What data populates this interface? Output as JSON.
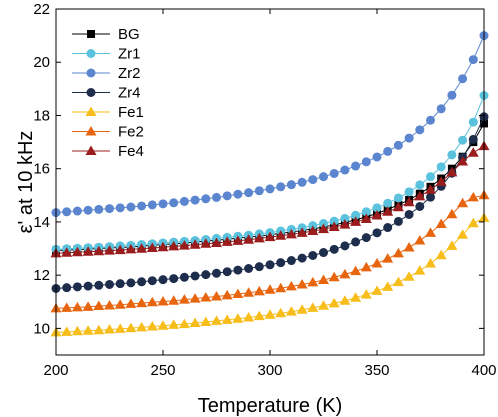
{
  "chart_data": {
    "type": "line",
    "xlabel": "Temperature (K)",
    "ylabel": "ε' at 10 kHz",
    "xlim": [
      200,
      400
    ],
    "ylim": [
      9,
      22
    ],
    "xticks": [
      200,
      250,
      300,
      350,
      400
    ],
    "yticks": [
      10,
      12,
      14,
      16,
      18,
      20,
      22
    ],
    "grid": false,
    "legend": "top-left",
    "x": [
      200,
      205,
      210,
      215,
      220,
      225,
      230,
      235,
      240,
      245,
      250,
      255,
      260,
      265,
      270,
      275,
      280,
      285,
      290,
      295,
      300,
      305,
      310,
      315,
      320,
      325,
      330,
      335,
      340,
      345,
      350,
      355,
      360,
      365,
      370,
      375,
      380,
      385,
      390,
      395,
      400
    ],
    "series": [
      {
        "name": "BG",
        "marker": "square",
        "color": "#000000",
        "values": [
          12.92,
          12.94,
          12.96,
          12.98,
          13.0,
          13.02,
          13.04,
          13.06,
          13.09,
          13.12,
          13.15,
          13.18,
          13.21,
          13.24,
          13.28,
          13.31,
          13.35,
          13.39,
          13.43,
          13.47,
          13.52,
          13.57,
          13.62,
          13.68,
          13.74,
          13.81,
          13.89,
          13.98,
          14.08,
          14.19,
          14.32,
          14.47,
          14.64,
          14.83,
          15.06,
          15.32,
          15.63,
          16.0,
          16.45,
          17.0,
          17.7
        ]
      },
      {
        "name": "Zr1",
        "marker": "circle",
        "color": "#5bc2dd",
        "values": [
          12.97,
          12.99,
          13.01,
          13.03,
          13.05,
          13.07,
          13.1,
          13.12,
          13.15,
          13.18,
          13.21,
          13.24,
          13.27,
          13.3,
          13.34,
          13.38,
          13.42,
          13.46,
          13.5,
          13.55,
          13.6,
          13.66,
          13.72,
          13.78,
          13.86,
          13.94,
          14.03,
          14.13,
          14.25,
          14.38,
          14.53,
          14.7,
          14.9,
          15.13,
          15.39,
          15.7,
          16.07,
          16.52,
          17.07,
          17.75,
          18.75
        ]
      },
      {
        "name": "Zr2",
        "marker": "circle",
        "color": "#5b86cf",
        "values": [
          14.35,
          14.38,
          14.41,
          14.44,
          14.47,
          14.5,
          14.53,
          14.56,
          14.6,
          14.64,
          14.68,
          14.72,
          14.77,
          14.82,
          14.87,
          14.92,
          14.98,
          15.04,
          15.1,
          15.17,
          15.24,
          15.32,
          15.4,
          15.49,
          15.59,
          15.7,
          15.82,
          15.95,
          16.1,
          16.26,
          16.44,
          16.65,
          16.88,
          17.15,
          17.46,
          17.82,
          18.25,
          18.76,
          19.38,
          20.1,
          21.0
        ]
      },
      {
        "name": "Zr4",
        "marker": "circle",
        "color": "#1f2d4d",
        "values": [
          11.5,
          11.53,
          11.56,
          11.59,
          11.62,
          11.65,
          11.68,
          11.71,
          11.75,
          11.79,
          11.83,
          11.87,
          11.92,
          11.97,
          12.02,
          12.07,
          12.13,
          12.19,
          12.25,
          12.32,
          12.39,
          12.47,
          12.55,
          12.64,
          12.74,
          12.85,
          12.97,
          13.1,
          13.25,
          13.41,
          13.59,
          13.79,
          14.02,
          14.28,
          14.58,
          14.93,
          15.34,
          15.83,
          16.42,
          17.1,
          17.95
        ]
      },
      {
        "name": "Fe1",
        "marker": "triangle",
        "color": "#f7bd1a",
        "values": [
          9.85,
          9.87,
          9.89,
          9.91,
          9.93,
          9.96,
          9.98,
          10.01,
          10.04,
          10.07,
          10.1,
          10.13,
          10.16,
          10.2,
          10.24,
          10.28,
          10.32,
          10.36,
          10.41,
          10.46,
          10.51,
          10.57,
          10.63,
          10.7,
          10.77,
          10.85,
          10.94,
          11.04,
          11.15,
          11.27,
          11.41,
          11.56,
          11.74,
          11.94,
          12.17,
          12.44,
          12.75,
          13.1,
          13.52,
          13.95,
          14.15
        ]
      },
      {
        "name": "Fe2",
        "marker": "triangle",
        "color": "#e8650f",
        "values": [
          10.75,
          10.77,
          10.79,
          10.81,
          10.84,
          10.86,
          10.89,
          10.92,
          10.95,
          10.98,
          11.01,
          11.04,
          11.08,
          11.12,
          11.16,
          11.2,
          11.24,
          11.29,
          11.34,
          11.39,
          11.45,
          11.51,
          11.58,
          11.65,
          11.73,
          11.82,
          11.92,
          12.03,
          12.15,
          12.29,
          12.44,
          12.62,
          12.82,
          13.04,
          13.3,
          13.59,
          13.92,
          14.29,
          14.7,
          14.92,
          15.0
        ]
      },
      {
        "name": "Fe4",
        "marker": "triangle",
        "color": "#9b1c1c",
        "values": [
          12.82,
          12.84,
          12.86,
          12.88,
          12.9,
          12.92,
          12.94,
          12.97,
          12.99,
          13.02,
          13.05,
          13.08,
          13.11,
          13.14,
          13.18,
          13.21,
          13.25,
          13.29,
          13.33,
          13.38,
          13.43,
          13.48,
          13.53,
          13.59,
          13.66,
          13.73,
          13.81,
          13.9,
          14.0,
          14.11,
          14.24,
          14.38,
          14.55,
          14.74,
          14.96,
          15.21,
          15.51,
          15.86,
          16.27,
          16.6,
          16.85
        ]
      }
    ]
  }
}
